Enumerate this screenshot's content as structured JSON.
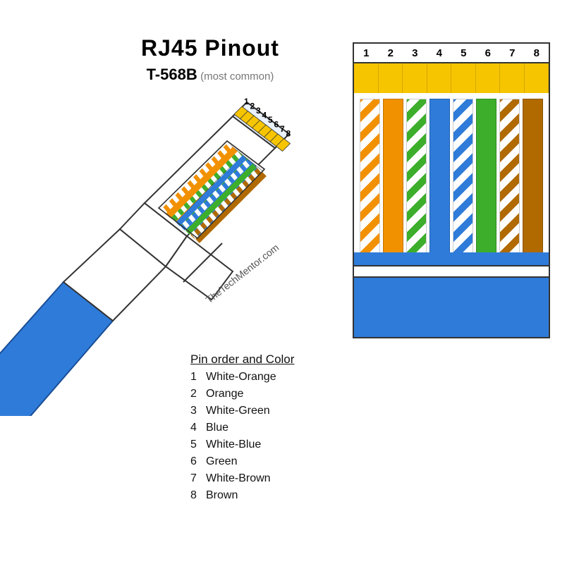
{
  "title": "RJ45  Pinout",
  "subtitle_bold": "T-568B",
  "subtitle_note": "(most common)",
  "credit": "TheTechMentor.com",
  "legend": {
    "heading": "Pin order and Color",
    "items": [
      {
        "n": "1",
        "label": "White-Orange"
      },
      {
        "n": "2",
        "label": "Orange"
      },
      {
        "n": "3",
        "label": "White-Green"
      },
      {
        "n": "4",
        "label": "Blue"
      },
      {
        "n": "5",
        "label": "White-Blue"
      },
      {
        "n": "6",
        "label": "Green"
      },
      {
        "n": "7",
        "label": "White-Brown"
      },
      {
        "n": "8",
        "label": "Brown"
      }
    ]
  },
  "colors": {
    "gold": "#f7c500",
    "orange": "#f29100",
    "green": "#3dae2b",
    "blue": "#2f7bd9",
    "brown": "#b06a00",
    "cable_blue": "#2f7bd9",
    "outline": "#333333",
    "bg": "#ffffff"
  },
  "pin_numbers": [
    "1",
    "2",
    "3",
    "4",
    "5",
    "6",
    "7",
    "8"
  ],
  "pins": [
    {
      "n": 1,
      "type": "striped",
      "stripe": "#f29100"
    },
    {
      "n": 2,
      "type": "solid",
      "color": "#f29100"
    },
    {
      "n": 3,
      "type": "striped",
      "stripe": "#3dae2b"
    },
    {
      "n": 4,
      "type": "solid",
      "color": "#2f7bd9"
    },
    {
      "n": 5,
      "type": "striped",
      "stripe": "#2f7bd9"
    },
    {
      "n": 6,
      "type": "solid",
      "color": "#3dae2b"
    },
    {
      "n": 7,
      "type": "striped",
      "stripe": "#b06a00"
    },
    {
      "n": 8,
      "type": "solid",
      "color": "#b06a00"
    }
  ],
  "connector_3d": {
    "pin_labels": [
      "1",
      "2",
      "3",
      "4",
      "5",
      "6",
      "7",
      "8"
    ]
  }
}
